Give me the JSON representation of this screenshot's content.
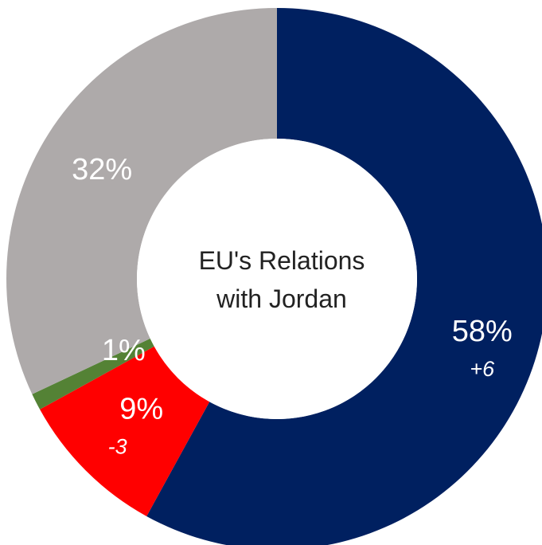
{
  "chart_data": {
    "type": "donut",
    "center_label": [
      "EU's Relations",
      "with Jordan"
    ],
    "slices": [
      {
        "value": 58,
        "label": "58%",
        "change": "+6",
        "color": "#002060"
      },
      {
        "value": 9,
        "label": "9%",
        "change": "-3",
        "color": "#ff0000"
      },
      {
        "value": 1,
        "label": "1%",
        "change": "",
        "color": "#548235"
      },
      {
        "value": 32,
        "label": "32%",
        "change": "",
        "color": "#aeaaaa"
      }
    ]
  }
}
